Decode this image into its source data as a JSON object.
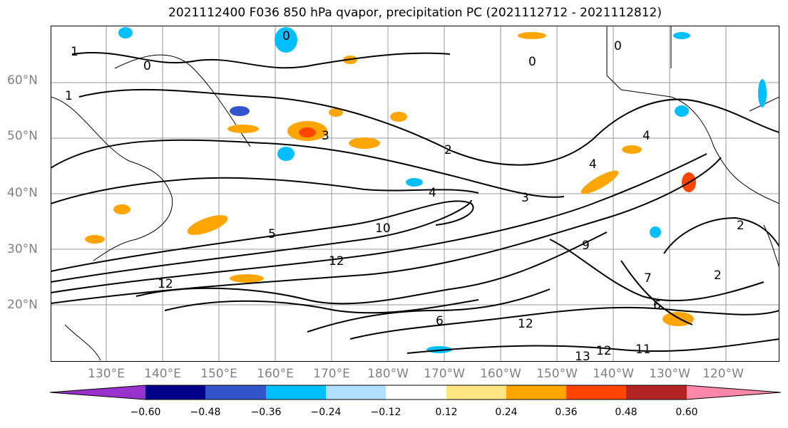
{
  "title": "2021112400 F036 850 hPa qvapor, precipitation PC (2021112712 - 2021112812)",
  "map": {
    "lat_labels": [
      "60°N",
      "50°N",
      "40°N",
      "30°N",
      "20°N"
    ],
    "lon_labels": [
      "130°E",
      "140°E",
      "150°E",
      "160°E",
      "170°E",
      "180°W",
      "170°W",
      "160°W",
      "150°W",
      "140°W",
      "130°W",
      "120°W"
    ],
    "contour_labels": [
      "1",
      "0",
      "1",
      "0",
      "0",
      "0",
      "2",
      "3",
      "4",
      "4",
      "3",
      "5",
      "10",
      "12",
      "12",
      "9",
      "7",
      "6",
      "12",
      "13",
      "11",
      "12",
      "2",
      "4",
      "6",
      "2"
    ]
  },
  "colorbar": {
    "ticks": [
      "−0.60",
      "−0.48",
      "−0.36",
      "−0.24",
      "−0.12",
      "0.12",
      "0.24",
      "0.36",
      "0.48",
      "0.60"
    ],
    "colors": [
      "#9932cc",
      "#00008b",
      "#3355cc",
      "#00bfff",
      "#b0e0ff",
      "#ffffff",
      "#ffe680",
      "#ffa500",
      "#ff4500",
      "#b22222",
      "#ff88aa"
    ]
  }
}
